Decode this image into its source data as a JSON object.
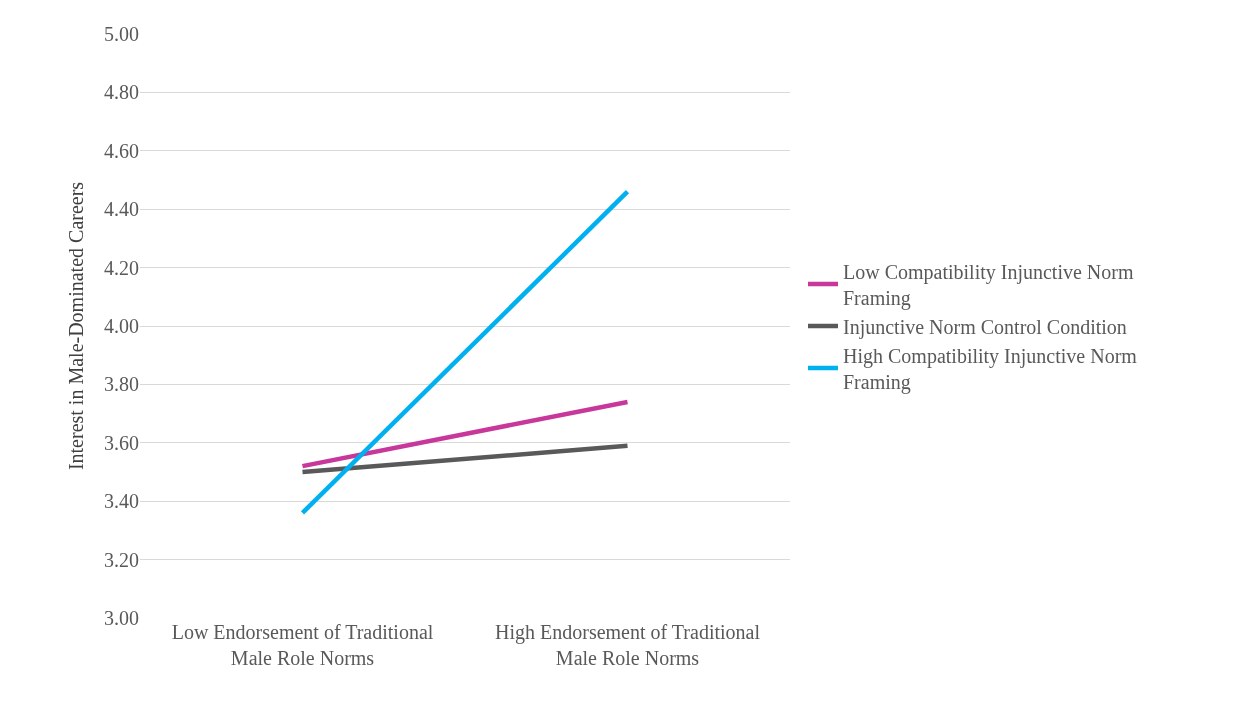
{
  "chart_data": {
    "type": "line",
    "ylabel": "Interest in Male-Dominated Careers",
    "categories": [
      "Low Endorsement of Traditional Male Role Norms",
      "High Endorsement of Traditional Male Role Norms"
    ],
    "series": [
      {
        "name": "Low Compatibility Injunctive Norm Framing",
        "color": "#c8379a",
        "values": [
          3.52,
          3.74
        ]
      },
      {
        "name": "Injunctive Norm Control Condition",
        "color": "#595959",
        "values": [
          3.5,
          3.59
        ]
      },
      {
        "name": "High Compatibility Injunctive Norm Framing",
        "color": "#00b0f0",
        "values": [
          3.36,
          4.46
        ]
      }
    ],
    "ylim": [
      3.0,
      5.0
    ],
    "yticks": [
      {
        "value": 3.0,
        "label": "3.00"
      },
      {
        "value": 3.2,
        "label": "3.20"
      },
      {
        "value": 3.4,
        "label": "3.40"
      },
      {
        "value": 3.6,
        "label": "3.60"
      },
      {
        "value": 3.8,
        "label": "3.80"
      },
      {
        "value": 4.0,
        "label": "4.00"
      },
      {
        "value": 4.2,
        "label": "4.20"
      },
      {
        "value": 4.4,
        "label": "4.40"
      },
      {
        "value": 4.6,
        "label": "4.60"
      },
      {
        "value": 4.8,
        "label": "4.80"
      },
      {
        "value": 5.0,
        "label": "5.00"
      }
    ],
    "grid": "y",
    "legend": "right",
    "marker": "none",
    "line_style": "solid"
  }
}
